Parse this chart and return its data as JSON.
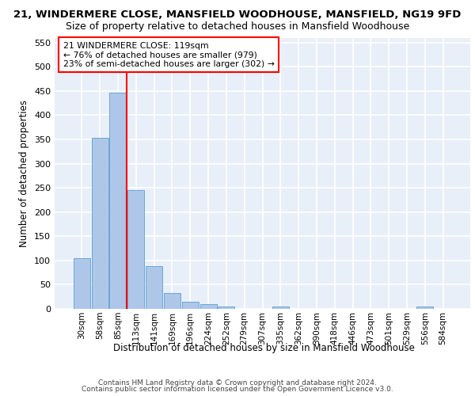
{
  "title_line1": "21, WINDERMERE CLOSE, MANSFIELD WOODHOUSE, MANSFIELD, NG19 9FD",
  "title_line2": "Size of property relative to detached houses in Mansfield Woodhouse",
  "xlabel": "Distribution of detached houses by size in Mansfield Woodhouse",
  "ylabel": "Number of detached properties",
  "footer_line1": "Contains HM Land Registry data © Crown copyright and database right 2024.",
  "footer_line2": "Contains public sector information licensed under the Open Government Licence v3.0.",
  "categories": [
    "30sqm",
    "58sqm",
    "85sqm",
    "113sqm",
    "141sqm",
    "169sqm",
    "196sqm",
    "224sqm",
    "252sqm",
    "279sqm",
    "307sqm",
    "335sqm",
    "362sqm",
    "390sqm",
    "418sqm",
    "446sqm",
    "473sqm",
    "501sqm",
    "529sqm",
    "556sqm",
    "584sqm"
  ],
  "values": [
    104,
    353,
    447,
    246,
    88,
    32,
    14,
    9,
    5,
    0,
    0,
    5,
    0,
    0,
    0,
    0,
    0,
    0,
    0,
    5,
    0
  ],
  "bar_color": "#aec6e8",
  "bar_edge_color": "#5a9fd4",
  "vline_x": 3,
  "vline_color": "red",
  "annotation_text": "21 WINDERMERE CLOSE: 119sqm\n← 76% of detached houses are smaller (979)\n23% of semi-detached houses are larger (302) →",
  "annotation_box_color": "white",
  "annotation_box_edge_color": "red",
  "ylim": [
    0,
    560
  ],
  "yticks": [
    0,
    50,
    100,
    150,
    200,
    250,
    300,
    350,
    400,
    450,
    500,
    550
  ],
  "bg_color": "#e8eff8",
  "grid_color": "white",
  "title_fontsize": 9.5,
  "subtitle_fontsize": 9
}
